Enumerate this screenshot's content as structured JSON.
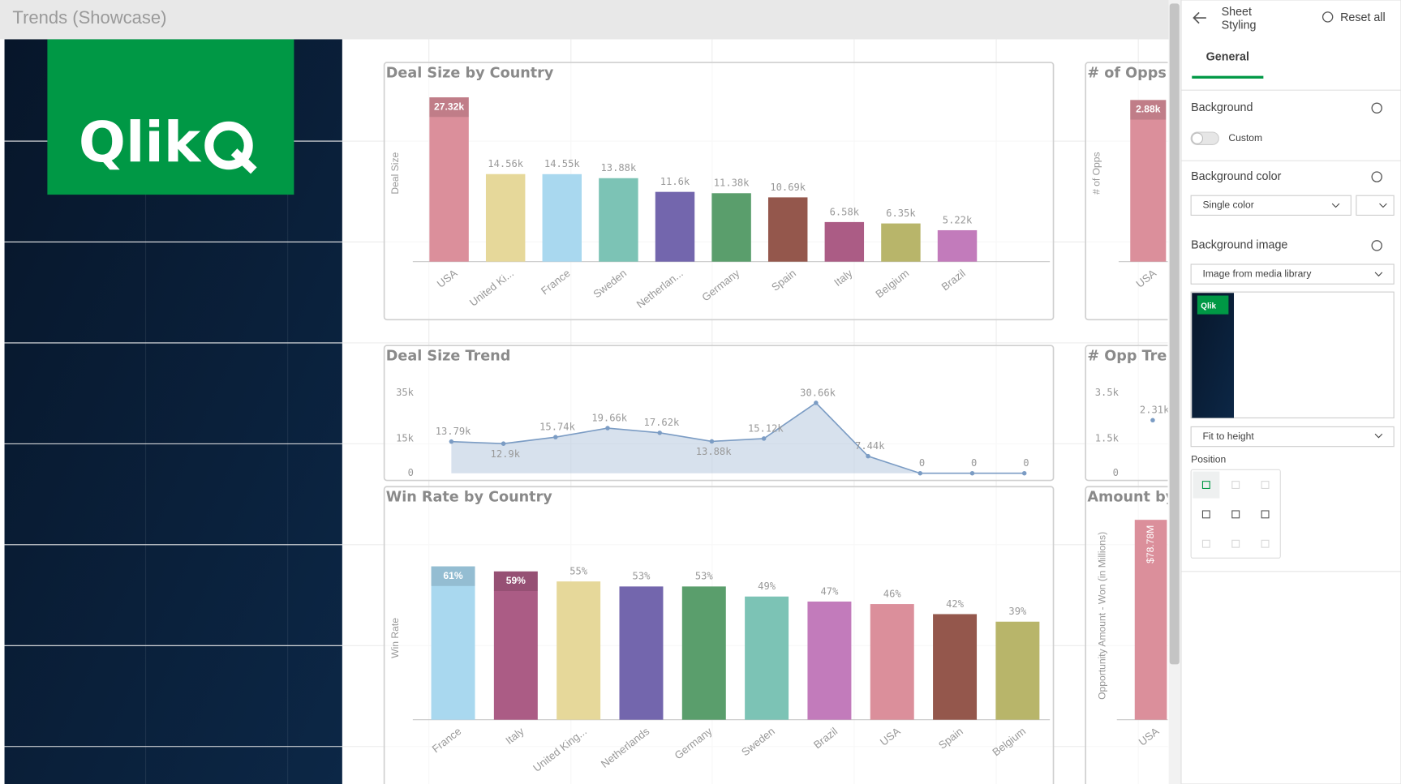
{
  "header": {
    "title": "Trends (Showcase)"
  },
  "logo": {
    "text": "Qlik"
  },
  "charts": [
    {
      "type": "bar",
      "title": "Deal Size by Country",
      "y_label": "Deal Size",
      "categories": [
        "USA",
        "United Ki...",
        "France",
        "Sweden",
        "Netherlan...",
        "Germany",
        "Spain",
        "Italy",
        "Belgium",
        "Brazil"
      ],
      "values": [
        27320,
        14560,
        14550,
        13880,
        11600,
        11380,
        10690,
        6580,
        6350,
        5220
      ],
      "value_labels": [
        "27.32k",
        "14.56k",
        "14.55k",
        "13.88k",
        "11.6k",
        "11.38k",
        "10.69k",
        "6.58k",
        "6.35k",
        "5.22k"
      ],
      "colors": [
        "#db8f9b",
        "#e6d89a",
        "#a9d8ef",
        "#7cc3b5",
        "#7366ad",
        "#5a9e6c",
        "#94574c",
        "#ab5c85",
        "#b8b56a",
        "#c27bbb"
      ],
      "ylim": [
        0,
        29400
      ]
    },
    {
      "type": "bar",
      "title": "# of Opps by",
      "y_label": "# of Opps",
      "categories": [
        "USA"
      ],
      "values": [
        2880
      ],
      "value_labels": [
        "2.88k"
      ],
      "colors": [
        "#db8f9b"
      ],
      "ylim": [
        0,
        3150
      ]
    },
    {
      "type": "line",
      "title": "Deal Size Trend",
      "categories": [
        null,
        null,
        null,
        null,
        null,
        null,
        null,
        null,
        null,
        null,
        null,
        null
      ],
      "values": [
        13790,
        12900,
        15740,
        19660,
        17620,
        13880,
        15120,
        30660,
        7440,
        0,
        0,
        0
      ],
      "value_labels": [
        "13.79k",
        "12.9k",
        "15.74k",
        "19.66k",
        "17.62k",
        "13.88k",
        "15.12k",
        "30.66k",
        "7.44k",
        "0",
        "0",
        "0"
      ],
      "color": "#7b9cc4",
      "ylim": [
        0,
        35000
      ],
      "yticks": [
        0,
        {
          "value": 15000,
          "label": "15k"
        },
        {
          "value": 35000,
          "label": "35k"
        }
      ]
    },
    {
      "type": "line",
      "title": "# Opp Trend",
      "categories": [
        null
      ],
      "values": [
        2310
      ],
      "value_labels": [
        "2.31k"
      ],
      "color": "#7b9cc4",
      "ylim": [
        0,
        3500
      ],
      "yticks": [
        0,
        {
          "value": 1500,
          "label": "1.5k"
        },
        {
          "value": 3500,
          "label": "3.5k"
        }
      ]
    },
    {
      "type": "bar",
      "title": "Win Rate by Country",
      "y_label": "Win Rate",
      "categories": [
        "France",
        "Italy",
        "United King...",
        "Netherlands",
        "Germany",
        "Sweden",
        "Brazil",
        "USA",
        "Spain",
        "Belgium"
      ],
      "values": [
        61,
        59,
        55,
        53,
        53,
        49,
        47,
        46,
        42,
        39
      ],
      "value_labels": [
        "61%",
        "59%",
        "55%",
        "53%",
        "53%",
        "49%",
        "47%",
        "46%",
        "42%",
        "39%"
      ],
      "colors": [
        "#a9d8ef",
        "#ab5c85",
        "#e6d89a",
        "#7366ad",
        "#5a9e6c",
        "#7cc3b5",
        "#c27bbb",
        "#db8f9b",
        "#94574c",
        "#b8b56a"
      ],
      "ylim": [
        0,
        65
      ]
    },
    {
      "type": "bar",
      "title": "Amount by C",
      "y_label": "Opportunity Amount - Won (in Millions)",
      "categories": [
        "USA"
      ],
      "values": [
        78.78
      ],
      "value_labels": [
        "$78.78M"
      ],
      "colors": [
        "#db8f9b"
      ],
      "ylim": [
        0,
        82
      ]
    }
  ],
  "panel": {
    "title_lines": [
      "Sheet",
      "Styling"
    ],
    "reset": "Reset all",
    "tab": "General",
    "background": "Background",
    "custom": "Custom",
    "background_color": "Background color",
    "single_color": "Single color",
    "background_image": "Background image",
    "image_source": "Image from media library",
    "fit": "Fit to height",
    "position": "Position"
  }
}
